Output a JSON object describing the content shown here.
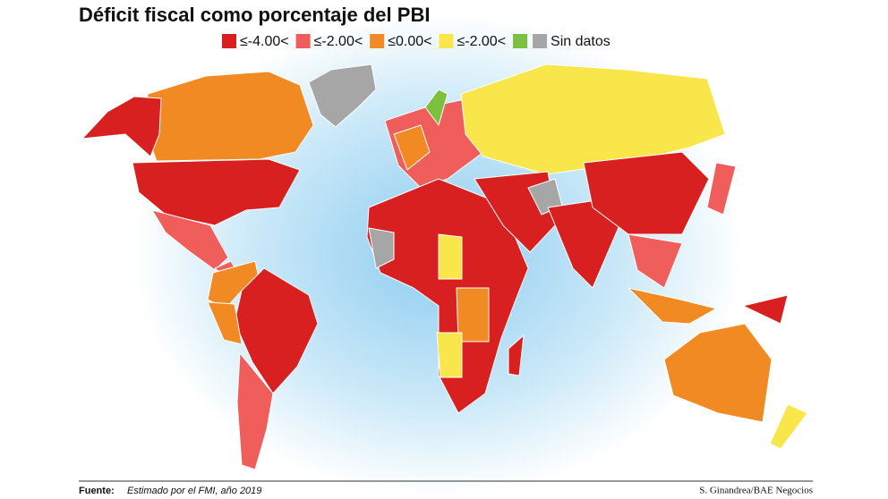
{
  "header": {
    "title": "Déficit fiscal como porcentaje del PBI"
  },
  "legend": {
    "items": [
      {
        "label": "≤-4.00<",
        "color": "#d7201f"
      },
      {
        "label": "≤-2.00<",
        "color": "#ef5e5a"
      },
      {
        "label": "≤0.00<",
        "color": "#f18a22"
      },
      {
        "label": "≤-2.00<",
        "color": "#f8e64a"
      },
      {
        "color": "#7dbf3f"
      },
      {
        "label": "Sin datos",
        "color": "#a6a6a6"
      }
    ]
  },
  "footer": {
    "source_label": "Fuente:",
    "source": "Estimado por el FMI, año 2019",
    "credit": "S. Ginandrea/BAE Negocios"
  }
}
